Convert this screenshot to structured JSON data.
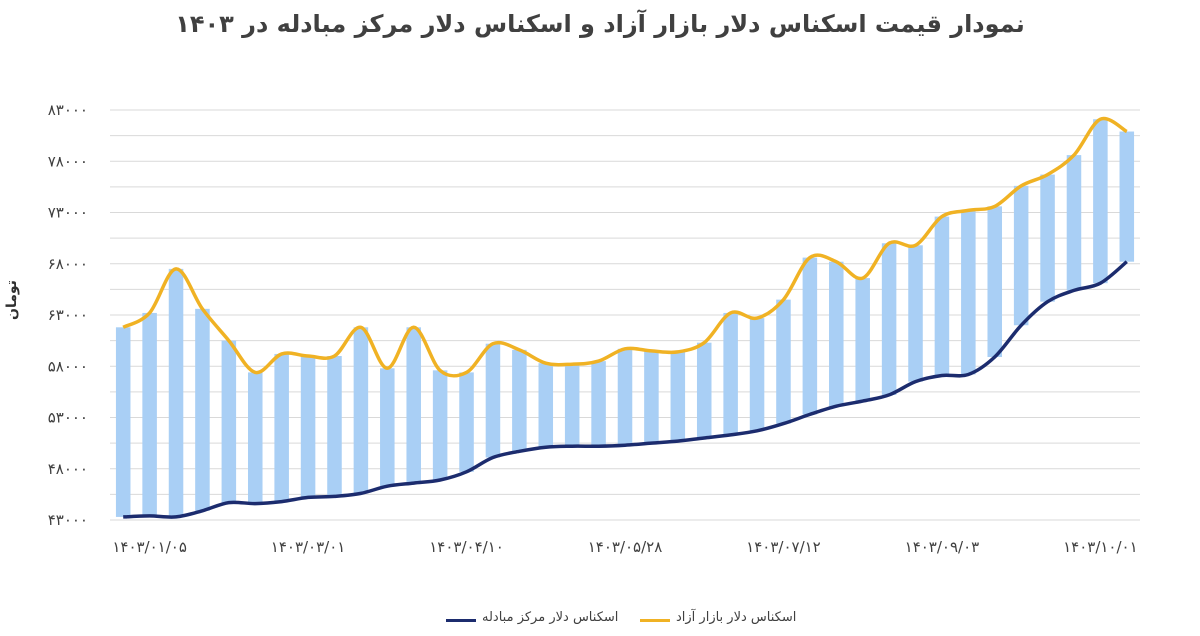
{
  "chart_data": {
    "type": "line",
    "title": "نمودار قیمت اسکناس دلار بازار آزاد و اسکناس دلار مرکز مبادله در ۱۴۰۳",
    "ylabel": "تومان",
    "xlabel": "",
    "ylim": [
      43000,
      83000
    ],
    "yticks": [
      43000,
      48000,
      53000,
      58000,
      63000,
      68000,
      73000,
      78000,
      83000
    ],
    "ytick_labels": [
      "۴۳۰۰۰",
      "۴۸۰۰۰",
      "۵۳۰۰۰",
      "۵۸۰۰۰",
      "۶۳۰۰۰",
      "۶۸۰۰۰",
      "۷۳۰۰۰",
      "۷۸۰۰۰",
      "۸۳۰۰۰"
    ],
    "xtick_labels": [
      "۱۴۰۳/۰۱/۰۵",
      "۱۴۰۳/۰۳/۰۱",
      "۱۴۰۳/۰۴/۱۰",
      "۱۴۰۳/۰۵/۲۸",
      "۱۴۰۳/۰۷/۱۲",
      "۱۴۰۳/۰۹/۰۳",
      "۱۴۰۳/۱۰/۰۱"
    ],
    "xtick_index": [
      1,
      7,
      13,
      19,
      25,
      31,
      37
    ],
    "grid": true,
    "legend_position": "bottom",
    "series": [
      {
        "name": "اسکناس دلار بازار آزاد",
        "color": "#f0b224",
        "values": [
          61800,
          63200,
          67500,
          63600,
          60500,
          57400,
          59200,
          59000,
          59000,
          61800,
          57800,
          61800,
          57600,
          57400,
          60200,
          59600,
          58300,
          58200,
          58500,
          59700,
          59500,
          59400,
          60300,
          63200,
          62700,
          64500,
          68600,
          68200,
          66600,
          70000,
          69800,
          72600,
          73200,
          73600,
          75600,
          76700,
          78600,
          82100,
          80900
        ]
      },
      {
        "name": "اسکناس دلار مرکز مبادله",
        "color": "#1c2c6e",
        "values": [
          43300,
          43400,
          43300,
          43900,
          44700,
          44600,
          44800,
          45200,
          45300,
          45600,
          46300,
          46600,
          46900,
          47700,
          49100,
          49700,
          50100,
          50200,
          50200,
          50300,
          50500,
          50700,
          51000,
          51300,
          51700,
          52400,
          53300,
          54100,
          54600,
          55200,
          56500,
          57100,
          57200,
          58900,
          62000,
          64300,
          65400,
          66100,
          68200
        ]
      }
    ]
  },
  "legend": {
    "free_market": "اسکناس دلار بازار آزاد",
    "exchange_center": "اسکناس دلار مرکز مبادله"
  },
  "colors": {
    "free_market_line": "#f0b224",
    "exchange_line": "#1c2c6e",
    "range_bar": "#a9cff5",
    "grid": "#d9d9d9"
  }
}
